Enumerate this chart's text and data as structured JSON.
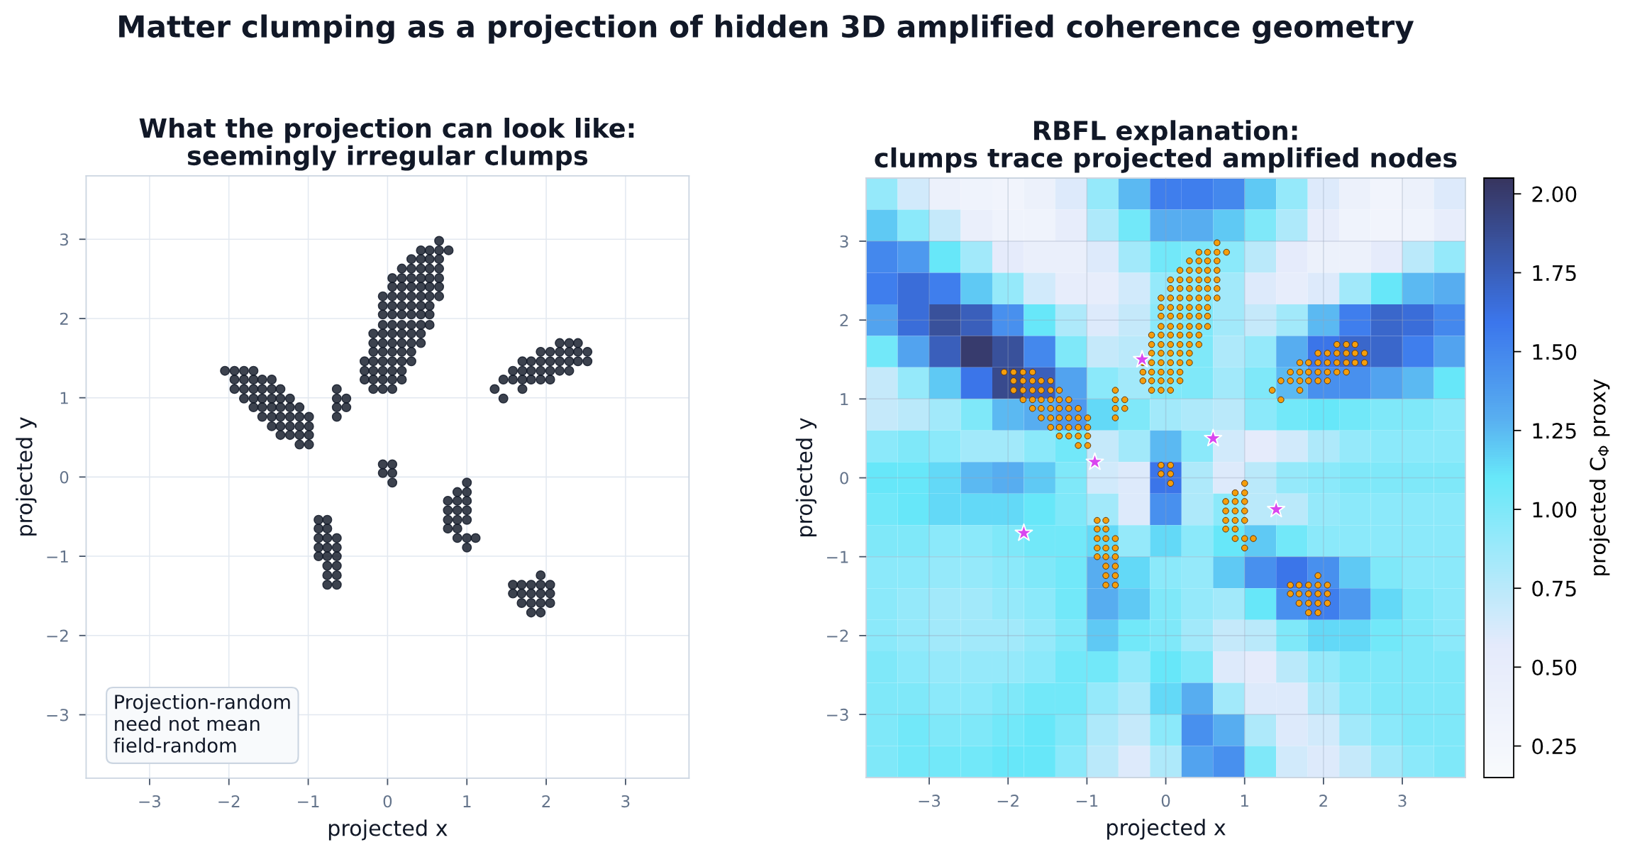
{
  "chart_data": [
    {
      "type": "other",
      "title": "Matter clumping as a projection of hidden 3D amplified coherence geometry"
    },
    {
      "type": "scatter",
      "title": "What the projection can look like:\nseemingly irregular clumps",
      "xlabel": "projected x",
      "ylabel": "projected y",
      "xlim": [
        -3.8,
        3.8
      ],
      "ylim": [
        -3.8,
        3.8
      ],
      "xticks": [
        {
          "value": -3,
          "label": "−3"
        },
        {
          "value": -2,
          "label": "−2"
        },
        {
          "value": -1,
          "label": "−1"
        },
        0,
        1,
        2,
        3
      ],
      "yticks": [
        {
          "value": -3,
          "label": "−3"
        },
        {
          "value": -2,
          "label": "−2"
        },
        {
          "value": -1,
          "label": "−1"
        },
        0,
        1,
        2,
        3
      ],
      "grid": true,
      "marker": "circle",
      "annotations": [
        "Projection-random\nneed not mean\nfield-random"
      ],
      "series": [
        {
          "color": "#111827",
          "x": [
            0.65,
            0.42,
            0.53,
            0.65,
            0.77,
            0.3,
            0.42,
            0.53,
            0.65,
            0.18,
            0.3,
            0.42,
            0.53,
            0.65,
            0.06,
            0.18,
            0.3,
            0.42,
            0.53,
            0.65,
            0.06,
            0.18,
            0.3,
            0.42,
            0.53,
            0.65,
            -0.06,
            0.06,
            0.18,
            0.3,
            0.42,
            0.53,
            0.65,
            -0.06,
            0.06,
            0.18,
            0.3,
            0.42,
            0.53,
            -0.06,
            0.06,
            0.18,
            0.3,
            0.42,
            0.53,
            -0.06,
            0.06,
            0.18,
            0.3,
            0.42,
            0.53,
            -0.18,
            -0.06,
            0.06,
            0.18,
            0.3,
            0.42,
            -0.18,
            -0.06,
            0.06,
            0.18,
            0.3,
            0.42,
            -0.18,
            -0.06,
            0.06,
            0.18,
            0.3,
            -0.29,
            -0.18,
            -0.06,
            0.06,
            0.18,
            0.3,
            -0.29,
            -0.18,
            -0.06,
            0.06,
            0.18,
            -0.29,
            -0.18,
            -0.06,
            0.06,
            0.18,
            -0.18,
            -0.06,
            0.06,
            -2.05,
            -1.93,
            -1.81,
            -1.69,
            -1.93,
            -1.81,
            -1.69,
            -1.58,
            -1.46,
            -1.93,
            -1.81,
            -1.69,
            -1.58,
            -1.46,
            -1.35,
            -1.81,
            -1.69,
            -1.58,
            -1.46,
            -1.35,
            -1.23,
            -1.69,
            -1.58,
            -1.46,
            -1.35,
            -1.23,
            -1.11,
            -1.58,
            -1.46,
            -1.35,
            -1.23,
            -1.11,
            -0.99,
            -1.46,
            -1.35,
            -1.23,
            -1.11,
            -0.99,
            -1.35,
            -1.23,
            -1.11,
            -0.99,
            -1.11,
            -0.99,
            -0.64,
            -0.64,
            -0.52,
            -0.64,
            -0.52,
            -0.64,
            2.17,
            2.29,
            2.4,
            1.93,
            2.05,
            2.17,
            2.29,
            2.4,
            2.52,
            1.7,
            1.81,
            1.93,
            2.05,
            2.17,
            2.29,
            2.4,
            2.52,
            1.58,
            1.7,
            1.81,
            1.93,
            2.05,
            2.17,
            2.29,
            1.46,
            1.58,
            1.7,
            1.81,
            1.93,
            2.05,
            1.35,
            1.7,
            1.46,
            -0.06,
            0.06,
            -0.06,
            0.06,
            0.06,
            1.0,
            0.88,
            1.0,
            0.76,
            0.88,
            1.0,
            0.76,
            0.88,
            1.0,
            0.76,
            0.88,
            1.0,
            0.76,
            0.88,
            0.88,
            1.0,
            1.11,
            1.0,
            -0.87,
            -0.76,
            -0.87,
            -0.76,
            -0.87,
            -0.76,
            -0.64,
            -0.87,
            -0.76,
            -0.64,
            -0.87,
            -0.76,
            -0.64,
            -0.76,
            -0.64,
            -0.76,
            -0.64,
            -0.76,
            -0.64,
            1.93,
            1.58,
            1.69,
            1.81,
            1.93,
            2.05,
            1.58,
            1.69,
            1.81,
            1.93,
            2.05,
            1.69,
            1.81,
            1.93,
            2.05,
            1.81,
            1.93
          ],
          "values": [
            2.98,
            2.86,
            2.86,
            2.86,
            2.86,
            2.75,
            2.75,
            2.75,
            2.75,
            2.63,
            2.63,
            2.63,
            2.63,
            2.63,
            2.51,
            2.51,
            2.51,
            2.51,
            2.51,
            2.51,
            2.4,
            2.4,
            2.4,
            2.4,
            2.4,
            2.4,
            2.28,
            2.28,
            2.28,
            2.28,
            2.28,
            2.28,
            2.28,
            2.16,
            2.16,
            2.16,
            2.16,
            2.16,
            2.16,
            2.05,
            2.05,
            2.05,
            2.05,
            2.05,
            2.05,
            1.92,
            1.92,
            1.92,
            1.92,
            1.92,
            1.92,
            1.81,
            1.81,
            1.81,
            1.81,
            1.81,
            1.81,
            1.69,
            1.69,
            1.69,
            1.69,
            1.69,
            1.69,
            1.58,
            1.58,
            1.58,
            1.58,
            1.58,
            1.46,
            1.46,
            1.46,
            1.46,
            1.46,
            1.46,
            1.34,
            1.34,
            1.34,
            1.34,
            1.34,
            1.23,
            1.23,
            1.23,
            1.23,
            1.23,
            1.11,
            1.11,
            1.11,
            1.34,
            1.34,
            1.34,
            1.34,
            1.23,
            1.23,
            1.23,
            1.23,
            1.23,
            1.11,
            1.11,
            1.11,
            1.11,
            1.11,
            1.11,
            0.99,
            0.99,
            0.99,
            0.99,
            0.99,
            0.99,
            0.88,
            0.88,
            0.88,
            0.88,
            0.88,
            0.88,
            0.76,
            0.76,
            0.76,
            0.76,
            0.76,
            0.76,
            0.64,
            0.64,
            0.64,
            0.64,
            0.64,
            0.53,
            0.53,
            0.53,
            0.53,
            0.41,
            0.41,
            1.11,
            0.99,
            0.99,
            0.88,
            0.88,
            0.76,
            1.69,
            1.69,
            1.69,
            1.58,
            1.58,
            1.58,
            1.58,
            1.58,
            1.58,
            1.46,
            1.46,
            1.46,
            1.46,
            1.46,
            1.46,
            1.46,
            1.46,
            1.34,
            1.34,
            1.34,
            1.34,
            1.34,
            1.34,
            1.34,
            1.23,
            1.23,
            1.23,
            1.23,
            1.23,
            1.23,
            1.11,
            1.11,
            0.99,
            0.16,
            0.16,
            0.05,
            0.05,
            -0.07,
            -0.07,
            -0.19,
            -0.19,
            -0.3,
            -0.3,
            -0.3,
            -0.42,
            -0.42,
            -0.42,
            -0.54,
            -0.54,
            -0.54,
            -0.65,
            -0.65,
            -0.77,
            -0.77,
            -0.77,
            -0.89,
            -0.54,
            -0.54,
            -0.65,
            -0.65,
            -0.77,
            -0.77,
            -0.77,
            -0.89,
            -0.89,
            -0.89,
            -1.0,
            -1.0,
            -1.0,
            -1.12,
            -1.12,
            -1.24,
            -1.24,
            -1.36,
            -1.36,
            -1.24,
            -1.36,
            -1.36,
            -1.36,
            -1.36,
            -1.36,
            -1.47,
            -1.47,
            -1.47,
            -1.47,
            -1.47,
            -1.59,
            -1.59,
            -1.59,
            -1.59,
            -1.71,
            -1.71
          ]
        }
      ]
    },
    {
      "type": "heatmap",
      "title": "RBFL explanation:\nclumps trace projected amplified nodes",
      "xlabel": "projected x",
      "ylabel": "projected y",
      "clabel": "projected C$_{Φ}$ proxy",
      "xlim": [
        -3.8,
        3.8
      ],
      "ylim": [
        -3.8,
        3.8
      ],
      "xticks": [
        {
          "value": -3,
          "label": "−3"
        },
        {
          "value": -2,
          "label": "−2"
        },
        {
          "value": -1,
          "label": "−1"
        },
        0,
        1,
        2,
        3
      ],
      "yticks": [
        {
          "value": -3,
          "label": "−3"
        },
        {
          "value": -2,
          "label": "−2"
        },
        {
          "value": -1,
          "label": "−1"
        },
        0,
        1,
        2,
        3
      ],
      "grid": true,
      "clim": [
        0.15,
        2.05
      ],
      "cticks": [
        0.25,
        {
          "value": 0.5,
          "label": "0.50"
        },
        0.75,
        {
          "value": 1,
          "label": "1.00"
        },
        1.25,
        {
          "value": 1.5,
          "label": "1.50"
        },
        1.75,
        {
          "value": 2,
          "label": "2.00"
        }
      ],
      "cells": [
        [
          0.9,
          0.65,
          0.4,
          0.35,
          0.3,
          0.4,
          0.6,
          0.9,
          1.25,
          1.55,
          1.55,
          1.5,
          1.2,
          0.9,
          0.6,
          0.4,
          0.3,
          0.4,
          0.6
        ],
        [
          1.2,
          0.95,
          0.7,
          0.45,
          0.35,
          0.35,
          0.5,
          0.8,
          1.05,
          1.3,
          1.3,
          1.2,
          1.0,
          0.8,
          0.5,
          0.35,
          0.3,
          0.35,
          0.5
        ],
        [
          1.5,
          1.4,
          1.1,
          0.85,
          0.55,
          0.45,
          0.45,
          0.6,
          0.85,
          1.05,
          1.0,
          0.95,
          0.75,
          0.55,
          0.4,
          0.4,
          0.55,
          0.75,
          0.9
        ],
        [
          1.55,
          1.65,
          1.55,
          1.2,
          0.9,
          0.65,
          0.5,
          0.5,
          0.65,
          0.9,
          0.95,
          0.85,
          0.6,
          0.5,
          0.6,
          0.85,
          1.1,
          1.25,
          1.3
        ],
        [
          1.35,
          1.65,
          1.85,
          1.75,
          1.45,
          1.1,
          0.8,
          0.6,
          0.7,
          0.95,
          1.0,
          0.85,
          0.7,
          0.85,
          1.25,
          1.55,
          1.7,
          1.65,
          1.5
        ],
        [
          1.05,
          1.35,
          1.75,
          2.0,
          1.85,
          1.5,
          1.0,
          0.7,
          0.75,
          0.95,
          1.0,
          0.8,
          0.9,
          1.3,
          1.6,
          1.7,
          1.7,
          1.55,
          1.35
        ],
        [
          0.7,
          0.9,
          1.2,
          1.6,
          1.9,
          1.75,
          1.35,
          0.95,
          0.85,
          1.0,
          1.0,
          0.85,
          1.0,
          1.25,
          1.45,
          1.45,
          1.35,
          1.25,
          1.1
        ],
        [
          0.7,
          0.75,
          0.85,
          1.0,
          1.25,
          1.3,
          1.4,
          1.15,
          1.0,
          0.85,
          0.8,
          0.75,
          0.95,
          1.05,
          1.1,
          1.05,
          1.0,
          1.0,
          0.95
        ],
        [
          0.95,
          1.0,
          0.95,
          0.85,
          0.85,
          0.95,
          1.05,
          0.7,
          0.85,
          1.25,
          0.95,
          0.65,
          0.55,
          0.65,
          0.8,
          0.9,
          0.95,
          0.95,
          0.95
        ],
        [
          1.1,
          1.1,
          1.15,
          1.25,
          1.3,
          1.2,
          1.0,
          0.65,
          0.6,
          1.6,
          0.8,
          0.6,
          0.75,
          0.9,
          0.95,
          1.0,
          1.0,
          1.0,
          1.0
        ],
        [
          1.05,
          1.1,
          1.15,
          1.15,
          1.15,
          1.1,
          1.0,
          0.85,
          0.6,
          1.45,
          0.8,
          0.95,
          0.75,
          0.75,
          0.9,
          0.95,
          0.95,
          0.95,
          0.95
        ],
        [
          1.0,
          1.0,
          0.95,
          0.95,
          1.0,
          1.05,
          1.05,
          1.15,
          0.9,
          1.15,
          0.95,
          1.1,
          1.2,
          1.05,
          0.95,
          0.95,
          0.95,
          0.95,
          0.95
        ],
        [
          0.95,
          0.95,
          0.9,
          0.9,
          0.95,
          1.0,
          1.05,
          1.3,
          1.15,
          0.95,
          0.9,
          1.2,
          1.45,
          1.6,
          1.45,
          1.2,
          1.0,
          0.95,
          0.95
        ],
        [
          0.95,
          0.9,
          0.85,
          0.85,
          0.9,
          0.95,
          1.05,
          1.3,
          1.2,
          1.0,
          0.9,
          0.85,
          1.1,
          1.45,
          1.55,
          1.4,
          1.15,
          1.0,
          0.95
        ],
        [
          0.95,
          0.9,
          0.85,
          0.85,
          0.85,
          0.9,
          1.0,
          1.2,
          1.05,
          1.0,
          0.85,
          0.7,
          0.75,
          1.0,
          1.15,
          1.15,
          1.05,
          1.0,
          0.95
        ],
        [
          1.0,
          0.95,
          0.9,
          0.9,
          0.9,
          0.95,
          1.05,
          1.05,
          0.9,
          1.1,
          1.0,
          0.6,
          0.55,
          0.75,
          0.9,
          1.0,
          1.0,
          1.0,
          1.0
        ],
        [
          1.0,
          1.0,
          0.95,
          0.95,
          1.0,
          1.05,
          1.05,
          0.9,
          0.8,
          1.15,
          1.3,
          0.85,
          0.6,
          0.6,
          0.8,
          0.95,
          1.0,
          1.0,
          1.0
        ],
        [
          1.0,
          1.05,
          1.0,
          1.0,
          1.05,
          1.1,
          1.0,
          0.8,
          0.7,
          0.95,
          1.45,
          1.3,
          0.8,
          0.6,
          0.65,
          0.85,
          0.95,
          1.0,
          1.0
        ],
        [
          1.0,
          1.05,
          1.05,
          1.05,
          1.1,
          1.1,
          0.95,
          0.75,
          0.6,
          0.8,
          1.35,
          1.45,
          1.0,
          0.65,
          0.6,
          0.7,
          0.85,
          0.95,
          1.0
        ]
      ],
      "series": [
        {
          "type": "scatter",
          "marker": "circle",
          "color": "#f59e0b",
          "x": [
            0.65,
            0.42,
            0.53,
            0.65,
            0.77,
            0.3,
            0.42,
            0.53,
            0.65,
            0.18,
            0.3,
            0.42,
            0.53,
            0.65,
            0.06,
            0.18,
            0.3,
            0.42,
            0.53,
            0.65,
            0.06,
            0.18,
            0.3,
            0.42,
            0.53,
            0.65,
            -0.06,
            0.06,
            0.18,
            0.3,
            0.42,
            0.53,
            0.65,
            -0.06,
            0.06,
            0.18,
            0.3,
            0.42,
            0.53,
            -0.06,
            0.06,
            0.18,
            0.3,
            0.42,
            0.53,
            -0.06,
            0.06,
            0.18,
            0.3,
            0.42,
            0.53,
            -0.18,
            -0.06,
            0.06,
            0.18,
            0.3,
            0.42,
            -0.18,
            -0.06,
            0.06,
            0.18,
            0.3,
            0.42,
            -0.18,
            -0.06,
            0.06,
            0.18,
            0.3,
            -0.29,
            -0.18,
            -0.06,
            0.06,
            0.18,
            0.3,
            -0.29,
            -0.18,
            -0.06,
            0.06,
            0.18,
            -0.29,
            -0.18,
            -0.06,
            0.06,
            0.18,
            -0.18,
            -0.06,
            0.06,
            -2.05,
            -1.93,
            -1.81,
            -1.69,
            -1.93,
            -1.81,
            -1.69,
            -1.58,
            -1.46,
            -1.93,
            -1.81,
            -1.69,
            -1.58,
            -1.46,
            -1.35,
            -1.81,
            -1.69,
            -1.58,
            -1.46,
            -1.35,
            -1.23,
            -1.69,
            -1.58,
            -1.46,
            -1.35,
            -1.23,
            -1.11,
            -1.58,
            -1.46,
            -1.35,
            -1.23,
            -1.11,
            -0.99,
            -1.46,
            -1.35,
            -1.23,
            -1.11,
            -0.99,
            -1.35,
            -1.23,
            -1.11,
            -0.99,
            -1.11,
            -0.99,
            -0.64,
            -0.64,
            -0.52,
            -0.64,
            -0.52,
            -0.64,
            2.17,
            2.29,
            2.4,
            1.93,
            2.05,
            2.17,
            2.29,
            2.4,
            2.52,
            1.7,
            1.81,
            1.93,
            2.05,
            2.17,
            2.29,
            2.4,
            2.52,
            1.58,
            1.7,
            1.81,
            1.93,
            2.05,
            2.17,
            2.29,
            1.46,
            1.58,
            1.7,
            1.81,
            1.93,
            2.05,
            1.35,
            1.7,
            1.46,
            -0.06,
            0.06,
            -0.06,
            0.06,
            0.06,
            1.0,
            0.88,
            1.0,
            0.76,
            0.88,
            1.0,
            0.76,
            0.88,
            1.0,
            0.76,
            0.88,
            1.0,
            0.76,
            0.88,
            0.88,
            1.0,
            1.11,
            1.0,
            -0.87,
            -0.76,
            -0.87,
            -0.76,
            -0.87,
            -0.76,
            -0.64,
            -0.87,
            -0.76,
            -0.64,
            -0.87,
            -0.76,
            -0.64,
            -0.76,
            -0.64,
            -0.76,
            -0.64,
            -0.76,
            -0.64,
            1.93,
            1.58,
            1.69,
            1.81,
            1.93,
            2.05,
            1.58,
            1.69,
            1.81,
            1.93,
            2.05,
            1.69,
            1.81,
            1.93,
            2.05,
            1.81,
            1.93
          ],
          "values": [
            2.98,
            2.86,
            2.86,
            2.86,
            2.86,
            2.75,
            2.75,
            2.75,
            2.75,
            2.63,
            2.63,
            2.63,
            2.63,
            2.63,
            2.51,
            2.51,
            2.51,
            2.51,
            2.51,
            2.51,
            2.4,
            2.4,
            2.4,
            2.4,
            2.4,
            2.4,
            2.28,
            2.28,
            2.28,
            2.28,
            2.28,
            2.28,
            2.28,
            2.16,
            2.16,
            2.16,
            2.16,
            2.16,
            2.16,
            2.05,
            2.05,
            2.05,
            2.05,
            2.05,
            2.05,
            1.92,
            1.92,
            1.92,
            1.92,
            1.92,
            1.92,
            1.81,
            1.81,
            1.81,
            1.81,
            1.81,
            1.81,
            1.69,
            1.69,
            1.69,
            1.69,
            1.69,
            1.69,
            1.58,
            1.58,
            1.58,
            1.58,
            1.58,
            1.46,
            1.46,
            1.46,
            1.46,
            1.46,
            1.46,
            1.34,
            1.34,
            1.34,
            1.34,
            1.34,
            1.23,
            1.23,
            1.23,
            1.23,
            1.23,
            1.11,
            1.11,
            1.11,
            1.34,
            1.34,
            1.34,
            1.34,
            1.23,
            1.23,
            1.23,
            1.23,
            1.23,
            1.11,
            1.11,
            1.11,
            1.11,
            1.11,
            1.11,
            0.99,
            0.99,
            0.99,
            0.99,
            0.99,
            0.99,
            0.88,
            0.88,
            0.88,
            0.88,
            0.88,
            0.88,
            0.76,
            0.76,
            0.76,
            0.76,
            0.76,
            0.76,
            0.64,
            0.64,
            0.64,
            0.64,
            0.64,
            0.53,
            0.53,
            0.53,
            0.53,
            0.41,
            0.41,
            1.11,
            0.99,
            0.99,
            0.88,
            0.88,
            0.76,
            1.69,
            1.69,
            1.69,
            1.58,
            1.58,
            1.58,
            1.58,
            1.58,
            1.58,
            1.46,
            1.46,
            1.46,
            1.46,
            1.46,
            1.46,
            1.46,
            1.46,
            1.34,
            1.34,
            1.34,
            1.34,
            1.34,
            1.34,
            1.34,
            1.23,
            1.23,
            1.23,
            1.23,
            1.23,
            1.23,
            1.11,
            1.11,
            0.99,
            0.16,
            0.16,
            0.05,
            0.05,
            -0.07,
            -0.07,
            -0.19,
            -0.19,
            -0.3,
            -0.3,
            -0.3,
            -0.42,
            -0.42,
            -0.42,
            -0.54,
            -0.54,
            -0.54,
            -0.65,
            -0.65,
            -0.77,
            -0.77,
            -0.77,
            -0.89,
            -0.54,
            -0.54,
            -0.65,
            -0.65,
            -0.77,
            -0.77,
            -0.77,
            -0.89,
            -0.89,
            -0.89,
            -1.0,
            -1.0,
            -1.0,
            -1.12,
            -1.12,
            -1.24,
            -1.24,
            -1.36,
            -1.36,
            -1.24,
            -1.36,
            -1.36,
            -1.36,
            -1.36,
            -1.36,
            -1.47,
            -1.47,
            -1.47,
            -1.47,
            -1.47,
            -1.59,
            -1.59,
            -1.59,
            -1.59,
            -1.71,
            -1.71
          ]
        },
        {
          "type": "scatter",
          "marker": "star",
          "color": "#d946ef",
          "x": [
            -0.3,
            0.6,
            -0.9,
            -1.8,
            1.4
          ],
          "values": [
            1.5,
            0.5,
            0.2,
            -0.7,
            -0.4
          ]
        }
      ]
    }
  ]
}
